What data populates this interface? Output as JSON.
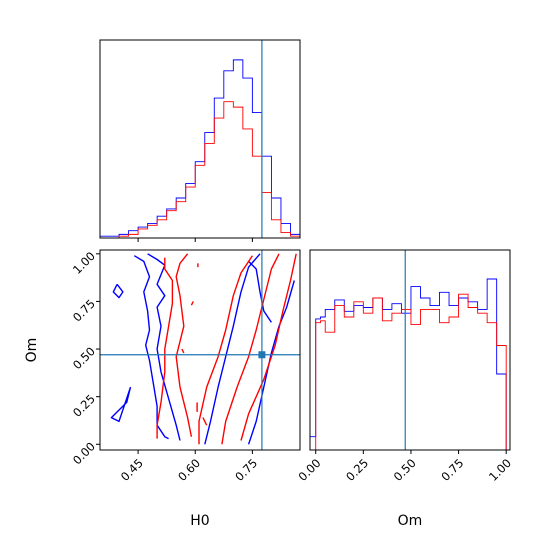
{
  "chart_data": {
    "type": "corner",
    "params": [
      "H0",
      "Om"
    ],
    "xlabel_left": "H0",
    "xlabel_right": "Om",
    "ylabel_left": "Om",
    "truth": {
      "H0": 0.775,
      "Om": 0.47
    },
    "colors": {
      "series_a": "#0000ff",
      "series_b": "#ff0000",
      "truth": "#1f77b4"
    },
    "axes": {
      "h0": {
        "min": 0.35,
        "max": 0.875,
        "ticks": [
          0.45,
          0.6,
          0.75
        ],
        "tick_labels": [
          "0.45",
          "0.60",
          "0.75"
        ]
      },
      "om": {
        "min": -0.03,
        "max": 1.02,
        "ticks": [
          0.0,
          0.25,
          0.5,
          0.75,
          1.0
        ],
        "tick_labels": [
          "0.00",
          "0.25",
          "0.50",
          "0.75",
          "1.00"
        ]
      }
    },
    "hist_h0": {
      "edges": [
        0.35,
        0.375,
        0.4,
        0.425,
        0.45,
        0.475,
        0.5,
        0.525,
        0.55,
        0.575,
        0.6,
        0.625,
        0.65,
        0.675,
        0.7,
        0.725,
        0.75,
        0.775,
        0.8,
        0.825,
        0.85,
        0.875
      ],
      "blue": [
        0.01,
        0.01,
        0.02,
        0.04,
        0.06,
        0.08,
        0.12,
        0.16,
        0.22,
        0.3,
        0.42,
        0.58,
        0.77,
        0.92,
        0.98,
        0.88,
        0.69,
        0.45,
        0.22,
        0.08,
        0.02
      ],
      "red": [
        0.0,
        0.0,
        0.01,
        0.02,
        0.05,
        0.07,
        0.1,
        0.15,
        0.2,
        0.28,
        0.4,
        0.52,
        0.66,
        0.75,
        0.72,
        0.6,
        0.45,
        0.25,
        0.1,
        0.03,
        0.01
      ]
    },
    "hist_om": {
      "edges": [
        -0.03,
        0.0,
        0.025,
        0.05,
        0.1,
        0.15,
        0.2,
        0.25,
        0.3,
        0.35,
        0.4,
        0.45,
        0.5,
        0.55,
        0.6,
        0.65,
        0.7,
        0.75,
        0.8,
        0.85,
        0.9,
        0.95,
        1.0
      ],
      "blue": [
        0.07,
        0.69,
        0.7,
        0.74,
        0.79,
        0.73,
        0.76,
        0.75,
        0.8,
        0.74,
        0.77,
        0.72,
        0.86,
        0.8,
        0.76,
        0.83,
        0.76,
        0.8,
        0.78,
        0.74,
        0.9,
        0.4
      ],
      "red": [
        0.0,
        0.67,
        0.68,
        0.62,
        0.76,
        0.7,
        0.78,
        0.72,
        0.8,
        0.68,
        0.72,
        0.74,
        0.66,
        0.74,
        0.74,
        0.67,
        0.7,
        0.82,
        0.75,
        0.72,
        0.67,
        0.55
      ]
    },
    "contours": {
      "blue": [
        [
          [
            0.44,
            0.99
          ],
          [
            0.465,
            0.96
          ],
          [
            0.48,
            0.88
          ],
          [
            0.465,
            0.8
          ],
          [
            0.475,
            0.7
          ],
          [
            0.48,
            0.6
          ],
          [
            0.47,
            0.52
          ],
          [
            0.48,
            0.44
          ],
          [
            0.49,
            0.32
          ],
          [
            0.5,
            0.2
          ],
          [
            0.5,
            0.1
          ],
          [
            0.52,
            0.04
          ],
          [
            0.53,
            0.03
          ]
        ],
        [
          [
            0.475,
            1.0
          ],
          [
            0.5,
            0.97
          ],
          [
            0.52,
            0.94
          ],
          [
            0.5,
            0.84
          ],
          [
            0.52,
            0.78
          ],
          [
            0.5,
            0.72
          ],
          [
            0.51,
            0.62
          ],
          [
            0.5,
            0.5
          ],
          [
            0.51,
            0.38
          ],
          [
            0.53,
            0.24
          ],
          [
            0.55,
            0.1
          ],
          [
            0.56,
            0.02
          ]
        ],
        [
          [
            0.395,
            0.84
          ],
          [
            0.41,
            0.8
          ],
          [
            0.4,
            0.77
          ],
          [
            0.385,
            0.8
          ],
          [
            0.395,
            0.84
          ]
        ],
        [
          [
            0.43,
            0.3
          ],
          [
            0.4,
            0.12
          ],
          [
            0.38,
            0.14
          ],
          [
            0.42,
            0.22
          ],
          [
            0.43,
            0.3
          ]
        ],
        [
          [
            0.625,
            0.0
          ],
          [
            0.64,
            0.12
          ],
          [
            0.66,
            0.3
          ],
          [
            0.68,
            0.46
          ],
          [
            0.7,
            0.62
          ],
          [
            0.72,
            0.8
          ],
          [
            0.74,
            0.93
          ],
          [
            0.77,
            1.0
          ]
        ],
        [
          [
            0.74,
            0.0
          ],
          [
            0.76,
            0.12
          ],
          [
            0.78,
            0.3
          ],
          [
            0.8,
            0.48
          ],
          [
            0.82,
            0.62
          ],
          [
            0.84,
            0.72
          ],
          [
            0.86,
            0.86
          ]
        ],
        [
          [
            0.74,
            0.96
          ],
          [
            0.76,
            0.92
          ],
          [
            0.77,
            0.8
          ],
          [
            0.78,
            0.7
          ],
          [
            0.8,
            0.64
          ]
        ]
      ],
      "red": [
        [
          [
            0.52,
            0.98
          ],
          [
            0.52,
            0.92
          ],
          [
            0.54,
            0.86
          ],
          [
            0.54,
            0.74
          ],
          [
            0.53,
            0.62
          ],
          [
            0.52,
            0.5
          ],
          [
            0.52,
            0.38
          ],
          [
            0.51,
            0.22
          ],
          [
            0.5,
            0.1
          ],
          [
            0.5,
            0.03
          ]
        ],
        [
          [
            0.58,
            1.0
          ],
          [
            0.56,
            0.95
          ],
          [
            0.55,
            0.88
          ],
          [
            0.56,
            0.78
          ],
          [
            0.57,
            0.62
          ],
          [
            0.55,
            0.46
          ],
          [
            0.56,
            0.3
          ],
          [
            0.58,
            0.14
          ],
          [
            0.59,
            0.04
          ]
        ],
        [
          [
            0.61,
            0.0
          ],
          [
            0.61,
            0.12
          ],
          [
            0.63,
            0.3
          ],
          [
            0.66,
            0.46
          ],
          [
            0.68,
            0.6
          ],
          [
            0.7,
            0.78
          ],
          [
            0.72,
            0.9
          ],
          [
            0.75,
            0.99
          ]
        ],
        [
          [
            0.67,
            0.0
          ],
          [
            0.68,
            0.12
          ],
          [
            0.71,
            0.3
          ],
          [
            0.74,
            0.46
          ],
          [
            0.76,
            0.6
          ],
          [
            0.78,
            0.76
          ],
          [
            0.8,
            0.92
          ],
          [
            0.82,
            1.0
          ]
        ],
        [
          [
            0.72,
            0.02
          ],
          [
            0.74,
            0.16
          ],
          [
            0.78,
            0.34
          ],
          [
            0.81,
            0.52
          ],
          [
            0.83,
            0.7
          ],
          [
            0.85,
            0.86
          ],
          [
            0.865,
            1.0
          ]
        ],
        [
          [
            0.607,
            0.93
          ],
          [
            0.607,
            0.95
          ]
        ],
        [
          [
            0.59,
            0.73
          ],
          [
            0.595,
            0.75
          ]
        ],
        [
          [
            0.565,
            0.5
          ],
          [
            0.57,
            0.48
          ]
        ],
        [
          [
            0.605,
            0.22
          ],
          [
            0.605,
            0.17
          ]
        ],
        [
          [
            0.62,
            0.14
          ],
          [
            0.63,
            0.1
          ]
        ]
      ]
    }
  }
}
